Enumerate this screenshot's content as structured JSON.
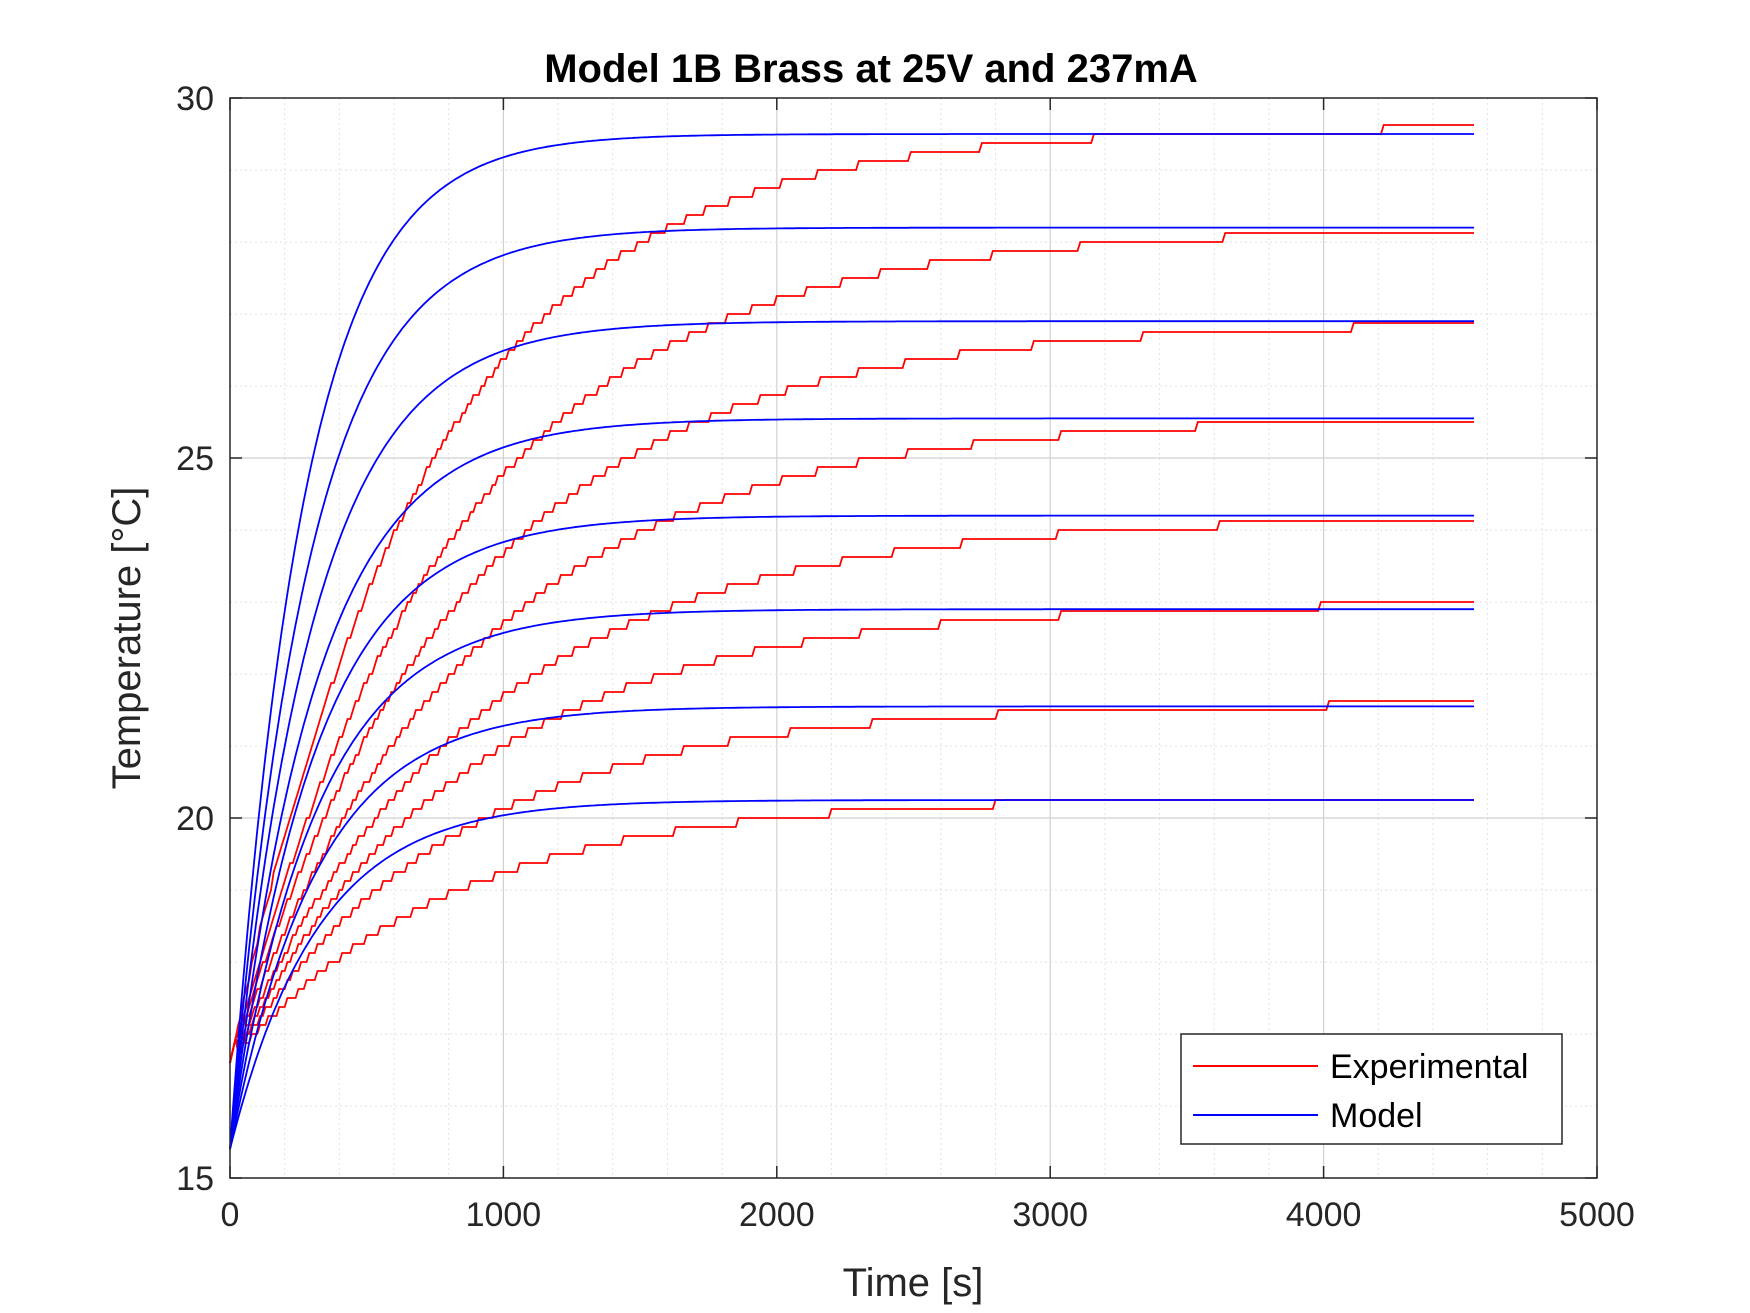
{
  "chart_data": {
    "type": "line",
    "title": "Model 1B Brass at 25V and 237mA",
    "xlabel": "Time [s]",
    "ylabel": "Temperature [°C]",
    "xlim": [
      0,
      5000
    ],
    "ylim": [
      15,
      30
    ],
    "xticks": [
      0,
      1000,
      2000,
      3000,
      4000,
      5000
    ],
    "yticks": [
      15,
      20,
      25,
      30
    ],
    "x_tick_labels": [
      "0",
      "1000",
      "2000",
      "3000",
      "4000",
      "5000"
    ],
    "y_tick_labels": [
      "15",
      "20",
      "25",
      "30"
    ],
    "grid": true,
    "minor_grid": true,
    "legend_position": "bottom-right",
    "colors": {
      "experimental": "#ff0000",
      "model": "#0000ff",
      "axes": "#262626"
    },
    "series": [
      {
        "name": "Experimental",
        "group": "experimental",
        "start": 16.6,
        "final": 29.6,
        "tau": 720,
        "t_end": 4550
      },
      {
        "name": "Experimental",
        "group": "experimental",
        "start": 16.6,
        "final": 28.2,
        "tau": 820,
        "t_end": 4550
      },
      {
        "name": "Experimental",
        "group": "experimental",
        "start": 16.6,
        "final": 26.9,
        "tau": 860,
        "t_end": 4550
      },
      {
        "name": "Experimental",
        "group": "experimental",
        "start": 16.6,
        "final": 25.6,
        "tau": 880,
        "t_end": 4550
      },
      {
        "name": "Experimental",
        "group": "experimental",
        "start": 16.6,
        "final": 24.2,
        "tau": 900,
        "t_end": 4550
      },
      {
        "name": "Experimental",
        "group": "experimental",
        "start": 16.6,
        "final": 23.0,
        "tau": 860,
        "t_end": 4550
      },
      {
        "name": "Experimental",
        "group": "experimental",
        "start": 16.6,
        "final": 21.6,
        "tau": 820,
        "t_end": 4550
      },
      {
        "name": "Experimental",
        "group": "experimental",
        "start": 16.6,
        "final": 20.3,
        "tau": 800,
        "t_end": 4550
      },
      {
        "name": "Model",
        "group": "model",
        "start": 15.4,
        "final": 29.5,
        "tau": 265,
        "t_end": 4550
      },
      {
        "name": "Model",
        "group": "model",
        "start": 15.4,
        "final": 28.2,
        "tau": 285,
        "t_end": 4550
      },
      {
        "name": "Model",
        "group": "model",
        "start": 15.4,
        "final": 26.9,
        "tau": 300,
        "t_end": 4550
      },
      {
        "name": "Model",
        "group": "model",
        "start": 15.4,
        "final": 25.55,
        "tau": 310,
        "t_end": 4550
      },
      {
        "name": "Model",
        "group": "model",
        "start": 15.4,
        "final": 24.2,
        "tau": 315,
        "t_end": 4550
      },
      {
        "name": "Model",
        "group": "model",
        "start": 15.4,
        "final": 22.9,
        "tau": 320,
        "t_end": 4550
      },
      {
        "name": "Model",
        "group": "model",
        "start": 15.4,
        "final": 21.55,
        "tau": 320,
        "t_end": 4550
      },
      {
        "name": "Model",
        "group": "model",
        "start": 15.4,
        "final": 20.25,
        "tau": 320,
        "t_end": 4550
      }
    ],
    "legend": [
      {
        "label": "Experimental",
        "color": "#ff0000"
      },
      {
        "label": "Model",
        "color": "#0000ff"
      }
    ]
  }
}
